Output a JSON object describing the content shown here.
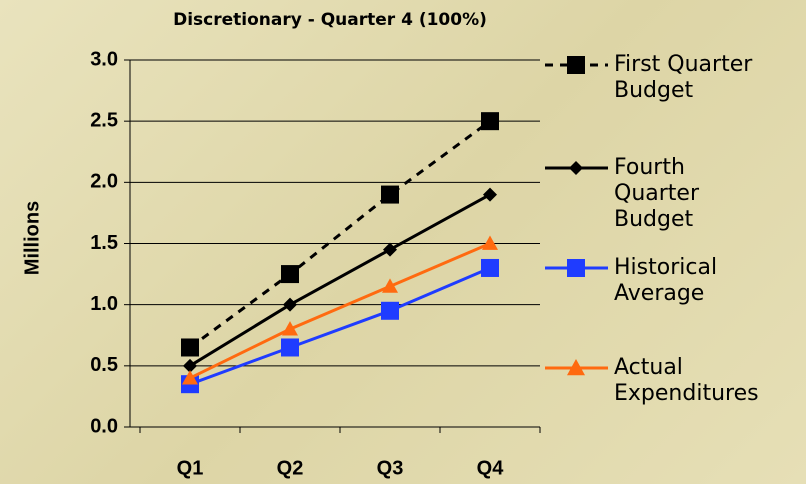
{
  "chart_data": {
    "type": "line",
    "title": "Discretionary - Quarter 4 (100%)",
    "y_label": "Millions",
    "categories": [
      "Q1",
      "Q2",
      "Q3",
      "Q4"
    ],
    "series": [
      {
        "name": "First Quarter Budget",
        "color": "#000000",
        "dash": true,
        "marker": "square",
        "values": [
          0.65,
          1.25,
          1.9,
          2.5
        ]
      },
      {
        "name": "Fourth Quarter Budget",
        "color": "#000000",
        "dash": false,
        "marker": "diamond",
        "values": [
          0.5,
          1.0,
          1.45,
          1.9
        ]
      },
      {
        "name": "Historical Average",
        "color": "#1f3cff",
        "dash": false,
        "marker": "square",
        "values": [
          0.35,
          0.65,
          0.95,
          1.3
        ]
      },
      {
        "name": "Actual Expenditures",
        "color": "#ff6a10",
        "dash": false,
        "marker": "triangle",
        "values": [
          0.4,
          0.8,
          1.15,
          1.5
        ]
      }
    ],
    "ylim": [
      0,
      3
    ],
    "yticks": [
      {
        "value": 0,
        "label": "0.0"
      },
      0.5,
      {
        "value": 1,
        "label": "1.0"
      },
      1.5,
      {
        "value": 2,
        "label": "2.0"
      },
      2.5,
      {
        "value": 3,
        "label": "3.0"
      }
    ],
    "grid": true,
    "legend": "right"
  }
}
